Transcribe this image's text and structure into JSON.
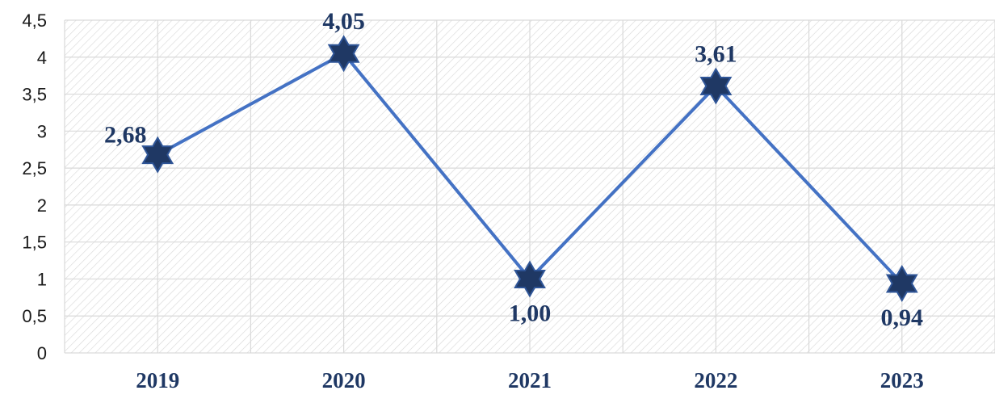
{
  "chart_data": {
    "type": "line",
    "categories": [
      "2019",
      "2020",
      "2021",
      "2022",
      "2023"
    ],
    "values": [
      2.68,
      4.05,
      1.0,
      3.61,
      0.94
    ],
    "data_labels": [
      "2,68",
      "4,05",
      "1,00",
      "3,61",
      "0,94"
    ],
    "label_positions": [
      "left",
      "above",
      "below",
      "above",
      "below"
    ],
    "ylim": [
      0,
      4.5
    ],
    "yticks": [
      0,
      0.5,
      1,
      1.5,
      2,
      2.5,
      3,
      3.5,
      4,
      4.5
    ],
    "ytick_labels": [
      "0",
      "0,5",
      "1",
      "1,5",
      "2",
      "2,5",
      "3",
      "3,5",
      "4",
      "4,5"
    ],
    "title": "",
    "xlabel": "",
    "ylabel": "",
    "grid": true,
    "legend": "none",
    "marker": "six-pointed-star",
    "colors": {
      "line": "#4472c4",
      "marker_fill": "#1f3864",
      "marker_stroke": "#2f5597",
      "grid": "#d9d9d9",
      "hatch": "#d9d9d9",
      "labels": "#1f3864"
    }
  }
}
